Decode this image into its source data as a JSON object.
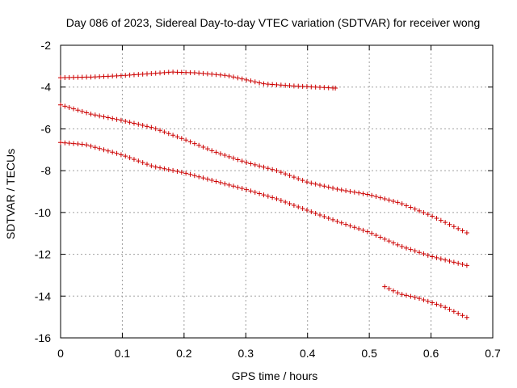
{
  "chart_data": {
    "type": "scatter",
    "title": "Day 086 of 2023, Sidereal Day-to-day VTEC variation (SDTVAR) for receiver wong",
    "xlabel": "GPS time / hours",
    "ylabel": "SDTVAR / TECUs",
    "xlim": [
      0,
      0.7
    ],
    "ylim": [
      -16,
      -2
    ],
    "x_ticks": [
      "0",
      "0.1",
      "0.2",
      "0.3",
      "0.4",
      "0.5",
      "0.6",
      "0.7"
    ],
    "y_ticks": [
      "-2",
      "-4",
      "-6",
      "-8",
      "-10",
      "-12",
      "-14",
      "-16"
    ],
    "x_tick_values": [
      0,
      0.1,
      0.2,
      0.3,
      0.4,
      0.5,
      0.6,
      0.7
    ],
    "y_tick_values": [
      -2,
      -4,
      -6,
      -8,
      -10,
      -12,
      -14,
      -16
    ],
    "grid": true,
    "marker": "+",
    "color": "#cc0000",
    "series": [
      {
        "name": "track-1",
        "anchors": [
          [
            0,
            -3.55
          ],
          [
            0.05,
            -3.52
          ],
          [
            0.1,
            -3.45
          ],
          [
            0.15,
            -3.35
          ],
          [
            0.18,
            -3.28
          ],
          [
            0.22,
            -3.32
          ],
          [
            0.27,
            -3.45
          ],
          [
            0.33,
            -3.85
          ],
          [
            0.38,
            -3.95
          ],
          [
            0.445,
            -4.05
          ]
        ]
      },
      {
        "name": "track-2",
        "anchors": [
          [
            0,
            -4.85
          ],
          [
            0.05,
            -5.3
          ],
          [
            0.1,
            -5.6
          ],
          [
            0.15,
            -5.95
          ],
          [
            0.2,
            -6.5
          ],
          [
            0.25,
            -7.1
          ],
          [
            0.3,
            -7.6
          ],
          [
            0.35,
            -8.0
          ],
          [
            0.4,
            -8.55
          ],
          [
            0.45,
            -8.9
          ],
          [
            0.5,
            -9.15
          ],
          [
            0.55,
            -9.55
          ],
          [
            0.6,
            -10.15
          ],
          [
            0.66,
            -11.0
          ]
        ]
      },
      {
        "name": "track-3",
        "anchors": [
          [
            0,
            -6.65
          ],
          [
            0.04,
            -6.75
          ],
          [
            0.1,
            -7.25
          ],
          [
            0.15,
            -7.8
          ],
          [
            0.2,
            -8.1
          ],
          [
            0.25,
            -8.5
          ],
          [
            0.3,
            -8.9
          ],
          [
            0.35,
            -9.35
          ],
          [
            0.4,
            -9.9
          ],
          [
            0.45,
            -10.45
          ],
          [
            0.5,
            -10.95
          ],
          [
            0.55,
            -11.6
          ],
          [
            0.6,
            -12.1
          ],
          [
            0.66,
            -12.55
          ]
        ]
      },
      {
        "name": "track-4",
        "anchors": [
          [
            0.525,
            -13.55
          ],
          [
            0.55,
            -13.9
          ],
          [
            0.58,
            -14.1
          ],
          [
            0.62,
            -14.5
          ],
          [
            0.66,
            -15.05
          ]
        ]
      }
    ],
    "sample_step": 0.007
  }
}
